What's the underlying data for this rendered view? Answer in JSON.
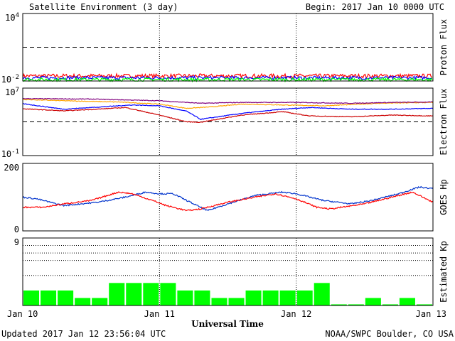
{
  "header": {
    "title": "Satellite Environment (3 day)",
    "begin": "Begin:  2017 Jan 10 0000 UTC"
  },
  "footer": {
    "updated": "Updated 2017 Jan 12 23:56:04 UTC",
    "credit": "NOAA/SWPC Boulder, CO USA"
  },
  "colors": {
    "red": "#ff0000",
    "blue": "#0000ff",
    "green": "#00ff00",
    "orange": "#ffa500",
    "purple": "#7f007f",
    "darkred": "#cc0000",
    "darkblue": "#0033cc"
  },
  "chart_data": {
    "type": "line",
    "x_range_days": [
      0,
      3
    ],
    "x_ticks": [
      "Jan 10",
      "Jan 11",
      "Jan 12",
      "Jan 13"
    ],
    "x_label": "Universal Time",
    "panels": [
      {
        "id": "proton",
        "ylabel": "Proton Flux",
        "scale": "log",
        "ylim_exp": [
          -2,
          4
        ],
        "tick_top": {
          "base": "10",
          "exp": "4"
        },
        "tick_bottom": {
          "base": "10",
          "exp": "-2"
        },
        "threshold_exp": 1,
        "series": [
          {
            "name": "",
            "color": "red",
            "level_exp": -1.55,
            "noise": 0.18
          },
          {
            "name": "",
            "color": "blue",
            "level_exp": -1.72,
            "noise": 0.15
          },
          {
            "name": "",
            "color": "green",
            "level_exp": -1.88,
            "noise": 0.15
          }
        ]
      },
      {
        "id": "electron",
        "ylabel": "Electron Flux",
        "scale": "log",
        "ylim_exp": [
          -1,
          7
        ],
        "tick_top": {
          "base": "10",
          "exp": "7"
        },
        "tick_bottom": {
          "base": "10",
          "exp": "-1"
        },
        "threshold_exp": 3,
        "series": [
          {
            "name": "",
            "color": "orange",
            "t": [
              0,
              0.3,
              0.7,
              1.0,
              1.2,
              1.4,
              1.6,
              1.9,
              2.2,
              2.6,
              3.0
            ],
            "v": [
              5.65,
              5.5,
              5.35,
              5.1,
              4.6,
              4.8,
              5.1,
              5.0,
              4.9,
              5.2,
              5.3
            ]
          },
          {
            "name": "",
            "color": "purple",
            "t": [
              0,
              0.5,
              1.0,
              1.3,
              1.6,
              2.0,
              2.4,
              2.7,
              3.0
            ],
            "v": [
              5.75,
              5.7,
              5.5,
              5.2,
              5.3,
              5.3,
              5.2,
              5.3,
              5.35
            ]
          },
          {
            "name": "",
            "color": "blue",
            "t": [
              0,
              0.3,
              0.6,
              0.8,
              1.0,
              1.2,
              1.3,
              1.6,
              1.9,
              2.1,
              2.4,
              2.7,
              3.0
            ],
            "v": [
              5.15,
              4.5,
              4.8,
              5.0,
              4.9,
              4.25,
              3.3,
              4.0,
              4.5,
              4.7,
              4.5,
              4.5,
              4.6
            ]
          },
          {
            "name": "",
            "color": "darkred",
            "t": [
              0,
              0.3,
              0.6,
              0.75,
              1.0,
              1.2,
              1.3,
              1.6,
              1.9,
              2.1,
              2.4,
              2.7,
              3.0
            ],
            "v": [
              4.55,
              4.3,
              4.55,
              4.7,
              3.8,
              3.0,
              2.95,
              3.8,
              4.2,
              3.7,
              3.6,
              3.8,
              3.7
            ]
          }
        ]
      },
      {
        "id": "hp",
        "ylabel": "GOES Hp",
        "scale": "linear",
        "ylim": [
          0,
          200
        ],
        "tick_top": {
          "base": "200",
          "exp": ""
        },
        "tick_bottom": {
          "base": "0",
          "exp": ""
        },
        "series": [
          {
            "name": "",
            "color": "darkblue",
            "t": [
              0,
              0.1,
              0.3,
              0.55,
              0.75,
              0.9,
              1.0,
              1.1,
              1.25,
              1.35,
              1.5,
              1.7,
              1.9,
              2.0,
              2.2,
              2.4,
              2.55,
              2.75,
              2.9,
              3.0
            ],
            "v": [
              100,
              95,
              75,
              85,
              100,
              115,
              110,
              110,
              80,
              60,
              80,
              105,
              115,
              110,
              90,
              80,
              90,
              110,
              130,
              125
            ]
          },
          {
            "name": "",
            "color": "red",
            "t": [
              0,
              0.15,
              0.3,
              0.5,
              0.7,
              0.8,
              0.95,
              1.05,
              1.2,
              1.3,
              1.5,
              1.7,
              1.85,
              2.0,
              2.15,
              2.25,
              2.5,
              2.7,
              2.85,
              3.0
            ],
            "v": [
              70,
              70,
              80,
              90,
              115,
              110,
              90,
              75,
              60,
              65,
              85,
              100,
              110,
              95,
              70,
              65,
              80,
              100,
              115,
              85
            ]
          }
        ]
      },
      {
        "id": "kp",
        "ylabel": "Estimated Kp",
        "type": "bar",
        "ylim": [
          0,
          9
        ],
        "tick_top": {
          "base": "9",
          "exp": ""
        },
        "tick_bottom": {
          "base": "",
          "exp": ""
        },
        "dotted_levels": [
          4,
          6,
          7,
          8
        ],
        "values": [
          2.0,
          2.0,
          2.0,
          1.0,
          1.0,
          3.0,
          3.0,
          3.0,
          3.0,
          2.0,
          2.0,
          1.0,
          1.0,
          2.0,
          2.0,
          2.0,
          2.0,
          3.0,
          0.15,
          0.15,
          1.0,
          0.15,
          1.0,
          0.15
        ]
      }
    ]
  }
}
